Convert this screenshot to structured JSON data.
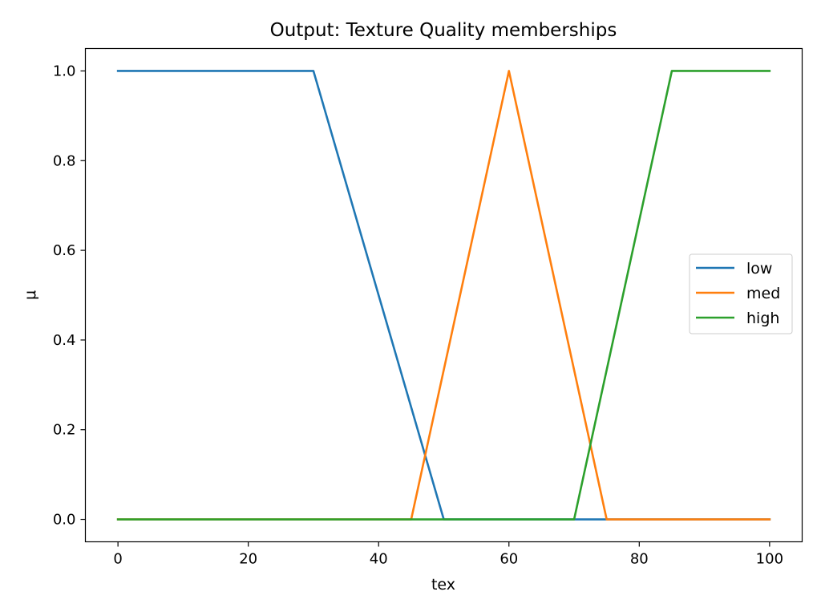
{
  "chart_data": {
    "type": "line",
    "title": "Output: Texture Quality memberships",
    "xlabel": "tex",
    "ylabel": "μ",
    "xlim": [
      -5,
      105
    ],
    "ylim": [
      -0.05,
      1.05
    ],
    "xticks": [
      0,
      20,
      40,
      60,
      80,
      100
    ],
    "xtick_labels": [
      "0",
      "20",
      "40",
      "60",
      "80",
      "100"
    ],
    "yticks": [
      0.0,
      0.2,
      0.4,
      0.6,
      0.8,
      1.0
    ],
    "ytick_labels": [
      "0.0",
      "0.2",
      "0.4",
      "0.6",
      "0.8",
      "1.0"
    ],
    "grid": false,
    "legend_position": "center-right",
    "series": [
      {
        "name": "low",
        "color": "#1f77b4",
        "x": [
          0,
          30,
          50,
          100
        ],
        "y": [
          1,
          1,
          0,
          0
        ]
      },
      {
        "name": "med",
        "color": "#ff7f0e",
        "x": [
          0,
          45,
          60,
          75,
          100
        ],
        "y": [
          0,
          0,
          1,
          0,
          0
        ]
      },
      {
        "name": "high",
        "color": "#2ca02c",
        "x": [
          0,
          70,
          85,
          100
        ],
        "y": [
          0,
          0,
          1,
          1
        ]
      }
    ]
  }
}
